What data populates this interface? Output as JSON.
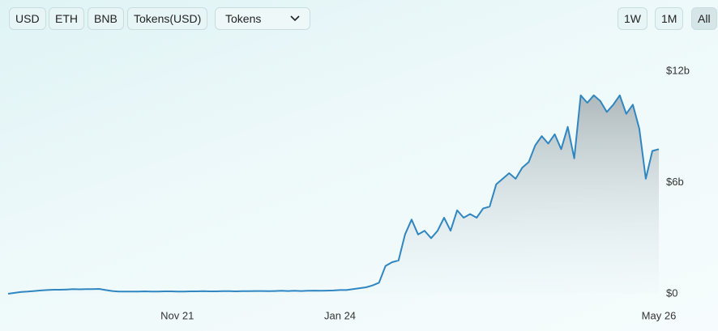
{
  "controls": {
    "currencies": [
      "USD",
      "ETH",
      "BNB",
      "Tokens(USD)"
    ],
    "dropdown": "Tokens",
    "ranges": [
      "1W",
      "1M",
      "All"
    ]
  },
  "chart_data": {
    "type": "area",
    "color": "#2f86c0",
    "x": [
      0,
      1,
      2,
      3,
      4,
      5,
      6,
      7,
      8,
      9,
      10,
      11,
      12,
      13,
      14,
      15,
      16,
      17,
      18,
      19,
      20,
      21,
      22,
      23,
      24,
      25,
      26,
      27,
      28,
      29,
      30,
      31,
      32,
      33,
      34,
      35,
      36,
      37,
      38,
      39,
      40,
      41,
      42,
      43,
      44,
      45,
      46,
      47,
      48,
      49,
      50,
      51,
      52,
      53,
      54,
      55,
      56,
      57,
      58,
      59,
      60,
      61,
      62,
      63,
      64,
      65,
      66,
      67,
      68,
      69,
      70,
      71,
      72,
      73,
      74,
      75,
      76,
      77,
      78,
      79,
      80,
      81,
      82,
      83,
      84,
      85,
      86,
      87,
      88,
      89,
      90,
      91,
      92,
      93,
      94,
      95,
      96,
      97,
      98,
      99,
      100
    ],
    "values": [
      0,
      0.05,
      0.1,
      0.12,
      0.15,
      0.18,
      0.2,
      0.22,
      0.22,
      0.23,
      0.25,
      0.24,
      0.25,
      0.25,
      0.26,
      0.2,
      0.15,
      0.12,
      0.12,
      0.12,
      0.12,
      0.13,
      0.12,
      0.12,
      0.13,
      0.13,
      0.12,
      0.12,
      0.13,
      0.13,
      0.14,
      0.13,
      0.13,
      0.14,
      0.14,
      0.13,
      0.14,
      0.14,
      0.15,
      0.15,
      0.14,
      0.15,
      0.16,
      0.15,
      0.16,
      0.15,
      0.16,
      0.17,
      0.16,
      0.17,
      0.18,
      0.2,
      0.2,
      0.25,
      0.3,
      0.35,
      0.45,
      0.6,
      1.5,
      1.7,
      1.8,
      3.2,
      4.0,
      3.2,
      3.4,
      3.0,
      3.4,
      4.1,
      3.4,
      4.5,
      4.1,
      4.3,
      4.1,
      4.6,
      4.7,
      5.9,
      6.2,
      6.5,
      6.2,
      6.8,
      7.1,
      8.0,
      8.5,
      8.1,
      8.6,
      7.8,
      9.0,
      7.3,
      10.7,
      10.3,
      10.7,
      10.4,
      9.8,
      10.2,
      10.7,
      9.7,
      10.2,
      8.9,
      6.2,
      7.7,
      7.8
    ],
    "xlim": [
      0,
      100
    ],
    "xticks": [
      {
        "value": 26,
        "label": "Nov 21"
      },
      {
        "value": 51,
        "label": "Jan 24"
      },
      {
        "value": 100,
        "label": "May 26"
      }
    ],
    "ylim": [
      0,
      12
    ],
    "yticks": [
      {
        "value": 0,
        "label": "$0"
      },
      {
        "value": 6,
        "label": "$6b"
      },
      {
        "value": 12,
        "label": "$12b"
      }
    ]
  }
}
